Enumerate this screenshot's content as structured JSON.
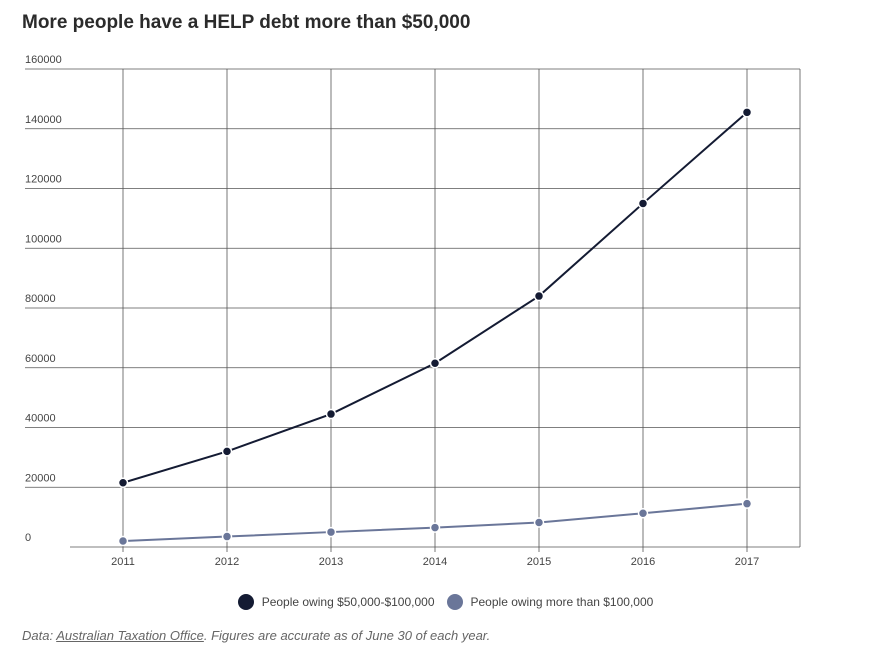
{
  "chart_data": {
    "type": "line",
    "title": "More people have a HELP debt more than $50,000",
    "xlabel": "",
    "ylabel": "",
    "x": [
      "2011",
      "2012",
      "2013",
      "2014",
      "2015",
      "2016",
      "2017"
    ],
    "ylim": [
      0,
      160000
    ],
    "yticks": [
      0,
      20000,
      40000,
      60000,
      80000,
      100000,
      120000,
      140000,
      160000
    ],
    "grid": true,
    "legend_position": "bottom",
    "series": [
      {
        "name": "People owing $50,000-$100,000",
        "color": "#141b33",
        "values": [
          21500,
          32000,
          44500,
          61500,
          84000,
          115000,
          145500
        ]
      },
      {
        "name": "People owing more than $100,000",
        "color": "#6a7699",
        "values": [
          2000,
          3500,
          5000,
          6500,
          8200,
          11300,
          14500
        ]
      }
    ]
  },
  "source": {
    "prefix": "Data: ",
    "link_text": "Australian Taxation Office",
    "suffix": ". Figures are accurate as of June 30 of each year."
  }
}
